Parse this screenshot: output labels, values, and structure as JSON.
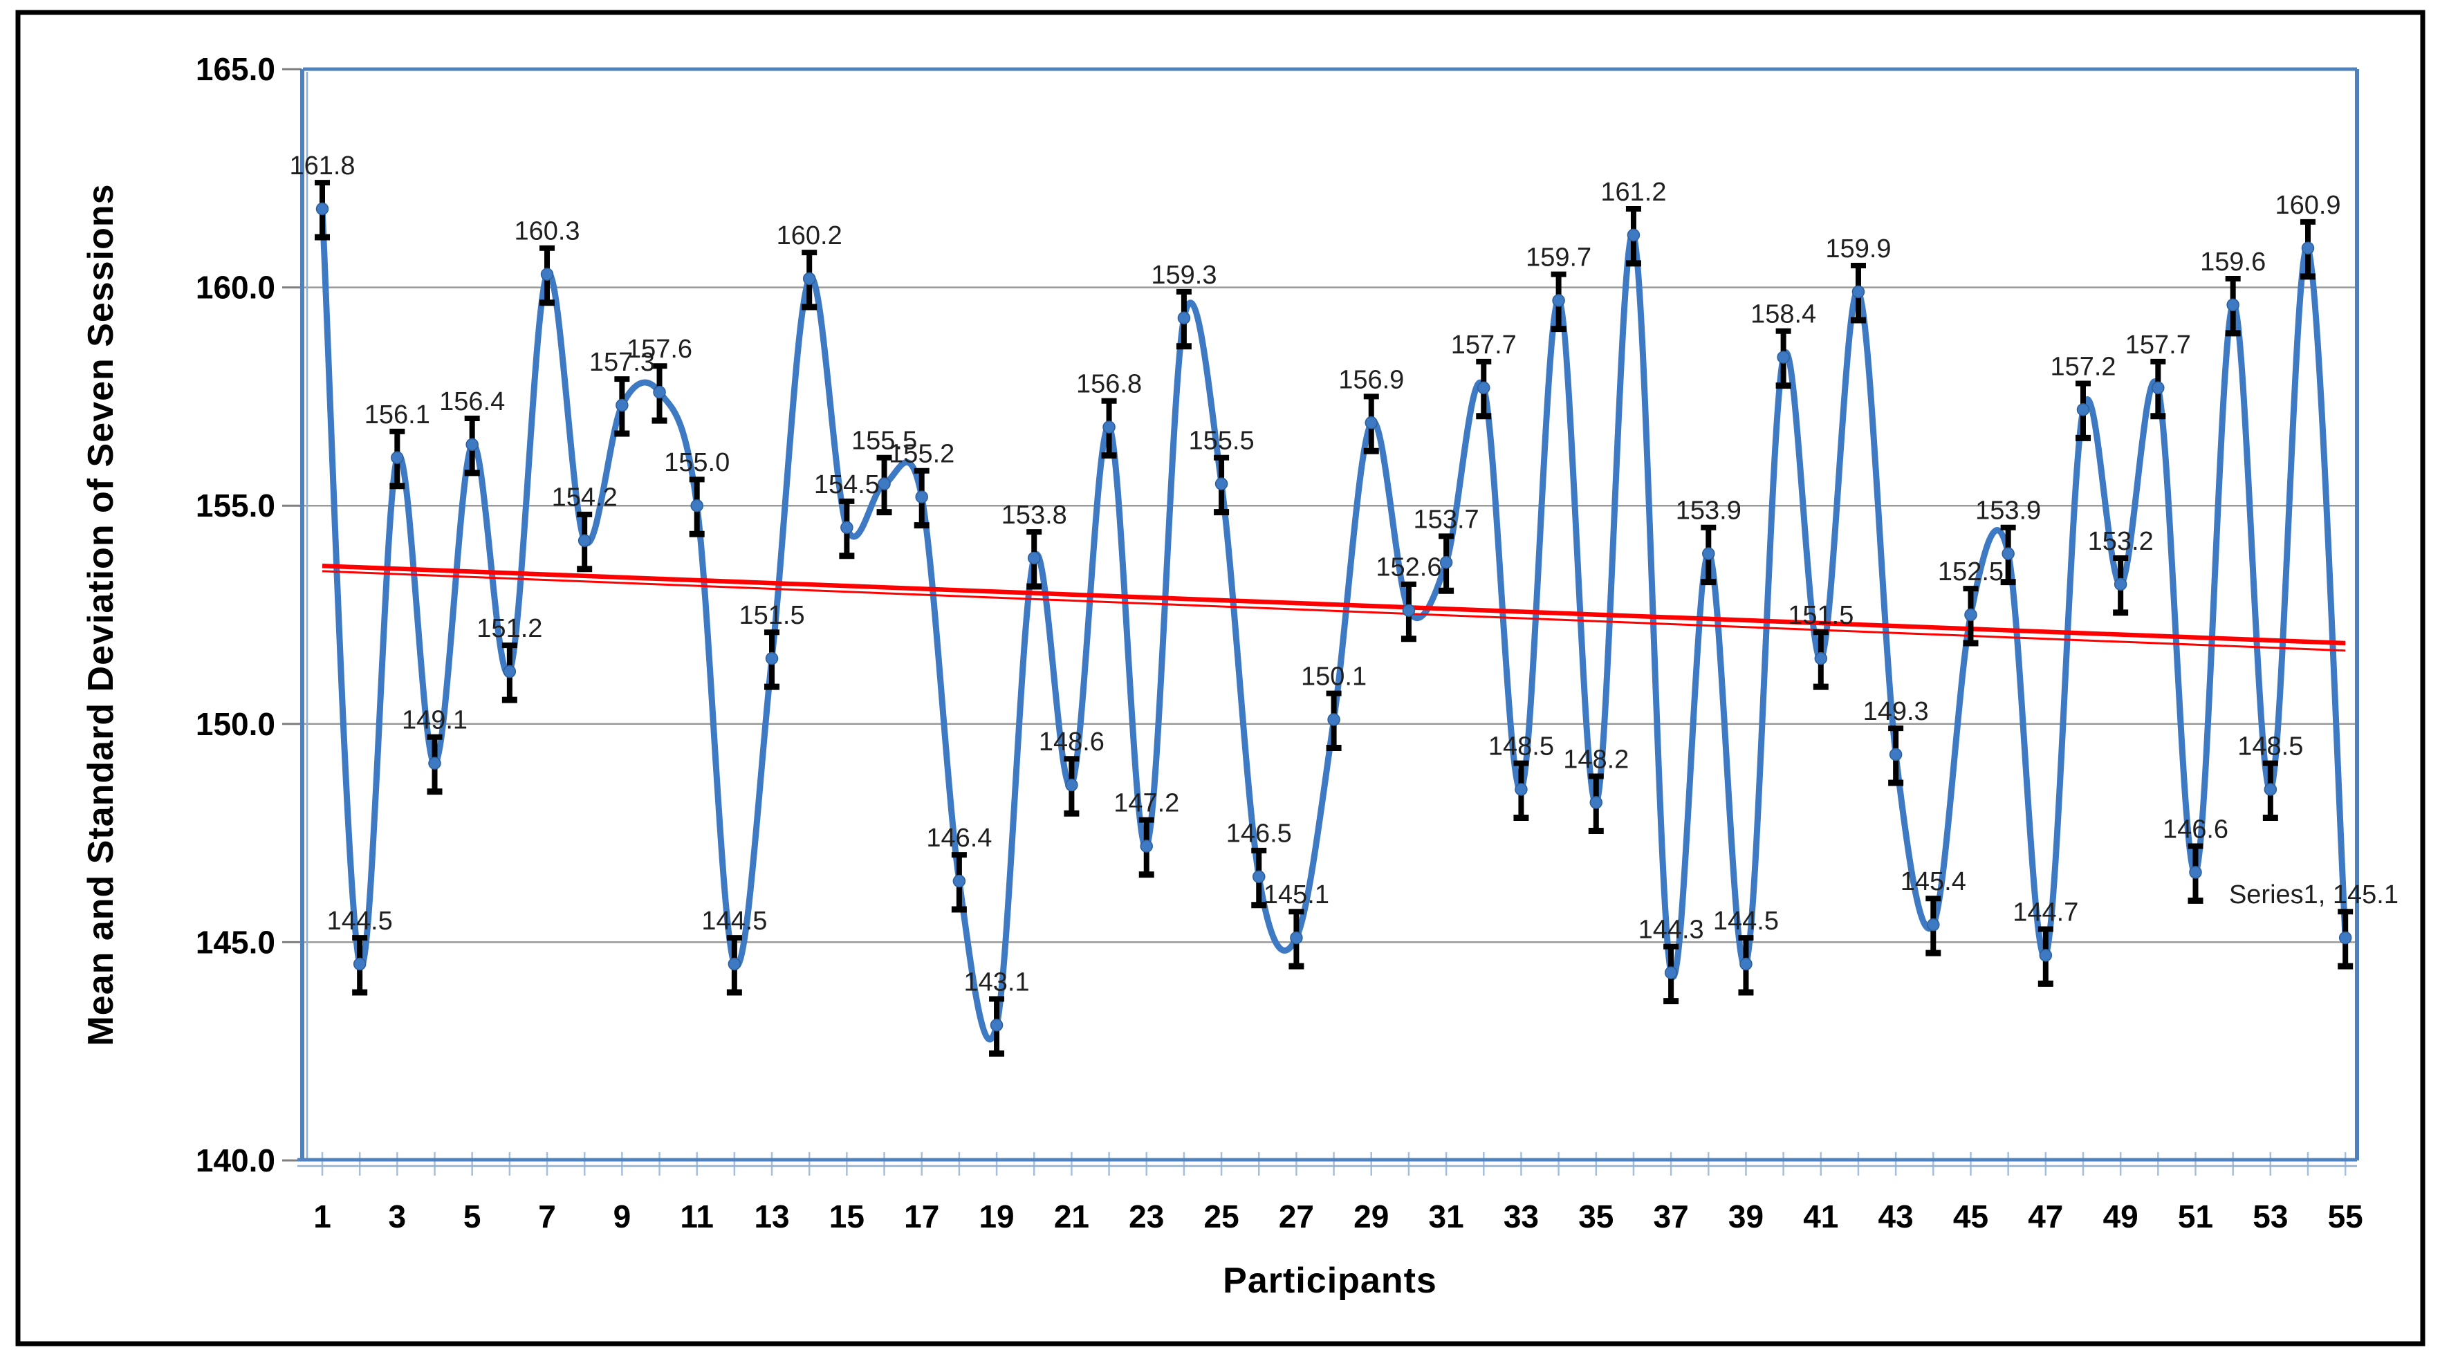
{
  "frame": {
    "border_color": "#000000",
    "background": "#ffffff"
  },
  "x_axis": {
    "title": "Participants",
    "tick_labels": [
      "1",
      "3",
      "5",
      "7",
      "9",
      "11",
      "13",
      "15",
      "17",
      "19",
      "21",
      "23",
      "25",
      "27",
      "29",
      "31",
      "33",
      "35",
      "37",
      "39",
      "41",
      "43",
      "45",
      "47",
      "49",
      "51",
      "53",
      "55"
    ]
  },
  "y_axis": {
    "title": "Mean and Standard Deviation of  Seven Sessions",
    "tick_labels": [
      "165.0",
      "160.0",
      "155.0",
      "150.0",
      "145.0",
      "140.0"
    ]
  },
  "chart_data": {
    "type": "line",
    "title": "",
    "xlabel": "Participants",
    "ylabel": "Mean and Standard Deviation of Seven Sessions",
    "ylim": [
      140,
      165
    ],
    "y_tick_step": 5,
    "grid": true,
    "smoothed": true,
    "legend_position": "none",
    "series": [
      {
        "name": "Series1",
        "x": [
          1,
          2,
          3,
          4,
          5,
          6,
          7,
          8,
          9,
          10,
          11,
          12,
          13,
          14,
          15,
          16,
          17,
          18,
          19,
          20,
          21,
          22,
          23,
          24,
          25,
          26,
          27,
          28,
          29,
          30,
          31,
          32,
          33,
          34,
          35,
          36,
          37,
          38,
          39,
          40,
          41,
          42,
          43,
          44,
          45,
          46,
          47,
          48,
          49,
          50,
          51,
          52,
          53,
          54,
          55
        ],
        "values": [
          161.8,
          144.5,
          156.1,
          149.1,
          156.4,
          151.2,
          160.3,
          154.2,
          157.3,
          157.6,
          155.0,
          144.5,
          151.5,
          160.2,
          154.5,
          155.5,
          155.2,
          146.4,
          143.1,
          153.8,
          148.6,
          156.8,
          147.2,
          159.3,
          155.5,
          146.5,
          145.1,
          150.1,
          156.9,
          152.6,
          153.7,
          157.7,
          148.5,
          159.7,
          148.2,
          161.2,
          144.3,
          153.9,
          144.5,
          158.4,
          151.5,
          159.9,
          149.3,
          145.4,
          152.5,
          153.9,
          144.7,
          157.2,
          153.2,
          157.7,
          146.6,
          159.6,
          148.5,
          160.9,
          145.1
        ]
      }
    ],
    "data_labels": [
      "161.8",
      "144.5",
      "156.1",
      "149.1",
      "156.4",
      "151.2",
      "160.3",
      "154.2",
      "157.3",
      "157.6",
      "155.0",
      "144.5",
      "151.5",
      "160.2",
      "154.5",
      "155.5",
      "155.2",
      "146.4",
      "143.1",
      "153.8",
      "148.6",
      "156.8",
      "147.2",
      "159.3",
      "155.5",
      "146.5",
      "145.1",
      "150.1",
      "156.9",
      "152.6",
      "153.7",
      "157.7",
      "148.5",
      "159.7",
      "148.2",
      "161.2",
      "144.3",
      "153.9",
      "144.5",
      "158.4",
      "151.5",
      "159.9",
      "149.3",
      "145.4",
      "152.5",
      "153.9",
      "144.7",
      "157.2",
      "153.2",
      "157.7",
      "146.6",
      "159.6",
      "148.5",
      "160.9",
      "Series1, 145.1"
    ],
    "error_bars": {
      "plus": 0.6,
      "minus": 0.65,
      "color": "#000000"
    },
    "trendline": {
      "type": "linear",
      "start_value": 153.62,
      "end_value": 151.85,
      "color": "#FF0000"
    },
    "trendline2": {
      "type": "linear",
      "start_value": 153.5,
      "end_value": 151.68,
      "color": "#FF0000"
    },
    "colors": {
      "line": "#3E79C4",
      "marker": "#3E79C4",
      "marker_edge": "#2E5E97",
      "gridline": "#999999",
      "axis_line": "#4F81BD",
      "axis_line_light": "#8FAFD4",
      "tick": "#7F7F7F",
      "x_tick": "#A6BFDC",
      "label_text": "#1F1F1F",
      "axis_text": "#000000"
    }
  }
}
